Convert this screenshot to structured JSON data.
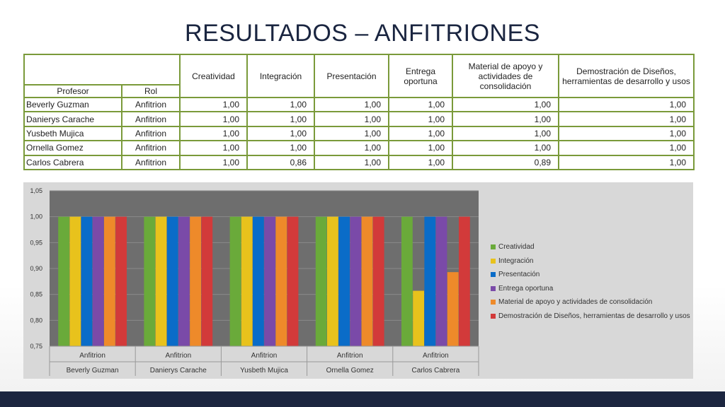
{
  "title": "RESULTADOS – ANFITRIONES",
  "table": {
    "header_top": [
      "Creatividad",
      "Integración",
      "Presentación",
      "Entrega oportuna",
      "Material de apoyo y actividades de consolidación",
      "Demostración de Diseños, herramientas de desarrollo y usos"
    ],
    "header_profesor": "Profesor",
    "header_rol": "Rol",
    "rows": [
      {
        "name": "Beverly Guzman",
        "rol": "Anfitrion",
        "values": [
          "1,00",
          "1,00",
          "1,00",
          "1,00",
          "1,00",
          "1,00"
        ]
      },
      {
        "name": "Danierys Carache",
        "rol": "Anfitrion",
        "values": [
          "1,00",
          "1,00",
          "1,00",
          "1,00",
          "1,00",
          "1,00"
        ]
      },
      {
        "name": "Yusbeth Mujica",
        "rol": "Anfitrion",
        "values": [
          "1,00",
          "1,00",
          "1,00",
          "1,00",
          "1,00",
          "1,00"
        ]
      },
      {
        "name": "Ornella Gomez",
        "rol": "Anfitrion",
        "values": [
          "1,00",
          "1,00",
          "1,00",
          "1,00",
          "1,00",
          "1,00"
        ]
      },
      {
        "name": "Carlos Cabrera",
        "rol": "Anfitrion",
        "values": [
          "1,00",
          "0,86",
          "1,00",
          "1,00",
          "0,89",
          "1,00"
        ]
      }
    ]
  },
  "chart_data": {
    "type": "bar",
    "categories": [
      "Beverly Guzman",
      "Danierys Carache",
      "Yusbeth Mujica",
      "Ornella Gomez",
      "Carlos Cabrera"
    ],
    "category_sublabel": "Anfitrion",
    "series": [
      {
        "name": "Creatividad",
        "color": "#6aaa3a",
        "values": [
          1.0,
          1.0,
          1.0,
          1.0,
          1.0
        ]
      },
      {
        "name": "Integración",
        "color": "#e8c21c",
        "values": [
          1.0,
          1.0,
          1.0,
          1.0,
          0.857
        ]
      },
      {
        "name": "Presentación",
        "color": "#0a6cc8",
        "values": [
          1.0,
          1.0,
          1.0,
          1.0,
          1.0
        ]
      },
      {
        "name": "Entrega oportuna",
        "color": "#7a4aa8",
        "values": [
          1.0,
          1.0,
          1.0,
          1.0,
          1.0
        ]
      },
      {
        "name": "Material de apoyo y actividades de consolidación",
        "color": "#ee8a2a",
        "values": [
          1.0,
          1.0,
          1.0,
          1.0,
          0.893
        ]
      },
      {
        "name": "Demostración de Diseños, herramientas de desarrollo y usos",
        "color": "#d23a3a",
        "values": [
          1.0,
          1.0,
          1.0,
          1.0,
          1.0
        ]
      }
    ],
    "yticks": [
      "0,75",
      "0,80",
      "0,85",
      "0,90",
      "0,95",
      "1,00",
      "1,05"
    ],
    "ylim": [
      0.75,
      1.05
    ],
    "grid": true,
    "legend": "right",
    "plot_background": "#6e6e6e"
  }
}
